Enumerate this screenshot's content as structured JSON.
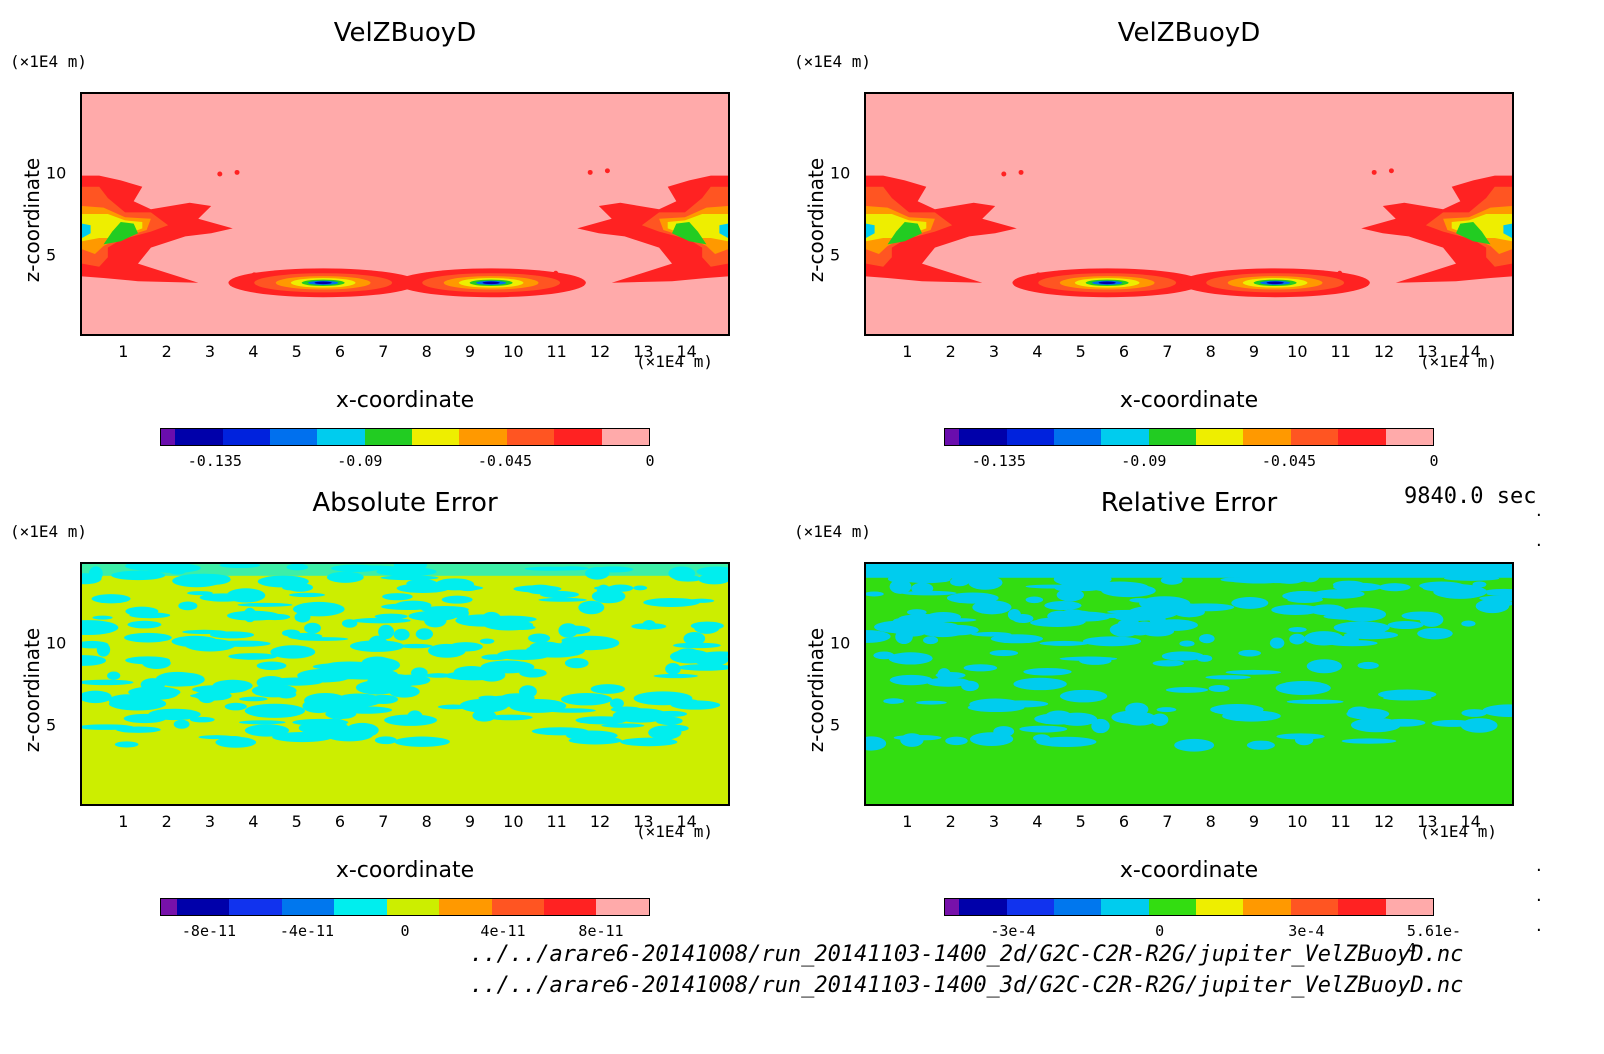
{
  "timestamp": "9840.0 sec",
  "files": [
    "../../arare6-20141008/run_20141103-1400_2d/G2C-C2R-R2G/jupiter_VelZBuoyD.nc",
    "../../arare6-20141008/run_20141103-1400_3d/G2C-C2R-R2G/jupiter_VelZBuoyD.nc"
  ],
  "chart_data": [
    {
      "type": "heatmap",
      "title": "VelZBuoyD",
      "xlabel": "x-coordinate",
      "ylabel": "z-coordinate",
      "x_unit": "(×1E4 m)",
      "y_unit": "(×1E4 m)",
      "x_ticks": [
        1,
        2,
        3,
        4,
        5,
        6,
        7,
        8,
        9,
        10,
        11,
        12,
        13,
        14
      ],
      "y_ticks": [
        5,
        10
      ],
      "xlim": [
        0,
        15
      ],
      "ylim": [
        0,
        15
      ],
      "colorbar": {
        "colors": [
          "#6a0dad",
          "#0000aa",
          "#0022dd",
          "#0070ee",
          "#00ccee",
          "#22cc22",
          "#eeee00",
          "#ff9900",
          "#ff5522",
          "#ff2222",
          "#ffaaaa"
        ],
        "tick_labels": [
          "-0.135",
          "-0.09",
          "-0.045",
          "0"
        ],
        "tick_values": [
          -0.135,
          -0.09,
          -0.045,
          0
        ],
        "range": [
          -0.152,
          0
        ]
      },
      "field": "buoy"
    },
    {
      "type": "heatmap",
      "title": "VelZBuoyD",
      "xlabel": "x-coordinate",
      "ylabel": "z-coordinate",
      "x_unit": "(×1E4 m)",
      "y_unit": "(×1E4 m)",
      "x_ticks": [
        1,
        2,
        3,
        4,
        5,
        6,
        7,
        8,
        9,
        10,
        11,
        12,
        13,
        14
      ],
      "y_ticks": [
        5,
        10
      ],
      "xlim": [
        0,
        15
      ],
      "ylim": [
        0,
        15
      ],
      "colorbar": {
        "colors": [
          "#6a0dad",
          "#0000aa",
          "#0022dd",
          "#0070ee",
          "#00ccee",
          "#22cc22",
          "#eeee00",
          "#ff9900",
          "#ff5522",
          "#ff2222",
          "#ffaaaa"
        ],
        "tick_labels": [
          "-0.135",
          "-0.09",
          "-0.045",
          "0"
        ],
        "tick_values": [
          -0.135,
          -0.09,
          -0.045,
          0
        ],
        "range": [
          -0.152,
          0
        ]
      },
      "field": "buoy"
    },
    {
      "type": "heatmap",
      "title": "Absolute Error",
      "xlabel": "x-coordinate",
      "ylabel": "z-coordinate",
      "x_unit": "(×1E4 m)",
      "y_unit": "(×1E4 m)",
      "x_ticks": [
        1,
        2,
        3,
        4,
        5,
        6,
        7,
        8,
        9,
        10,
        11,
        12,
        13,
        14
      ],
      "y_ticks": [
        5,
        10
      ],
      "xlim": [
        0,
        15
      ],
      "ylim": [
        0,
        15
      ],
      "colorbar": {
        "colors": [
          "#7711aa",
          "#0000aa",
          "#1133ee",
          "#0077ee",
          "#00eeee",
          "#ccee00",
          "#ff9900",
          "#ff5522",
          "#ff2222",
          "#ffaaaa"
        ],
        "tick_labels": [
          "-8e-11",
          "-4e-11",
          "0",
          "4e-11",
          "8e-11"
        ],
        "tick_values": [
          -8e-11,
          -4e-11,
          0,
          4e-11,
          8e-11
        ],
        "range": [
          -1e-10,
          1e-10
        ]
      },
      "field": "abs",
      "fill_colors": [
        "#ccee00",
        "#00eeee"
      ]
    },
    {
      "type": "heatmap",
      "title": "Relative Error",
      "xlabel": "x-coordinate",
      "ylabel": "z-coordinate",
      "x_unit": "(×1E4 m)",
      "y_unit": "(×1E4 m)",
      "x_ticks": [
        1,
        2,
        3,
        4,
        5,
        6,
        7,
        8,
        9,
        10,
        11,
        12,
        13,
        14
      ],
      "y_ticks": [
        5,
        10
      ],
      "xlim": [
        0,
        15
      ],
      "ylim": [
        0,
        15
      ],
      "colorbar": {
        "colors": [
          "#7711aa",
          "#0000aa",
          "#1133ee",
          "#0077ee",
          "#00ccee",
          "#33dd11",
          "#eeee00",
          "#ff9900",
          "#ff5522",
          "#ff2222",
          "#ffaaaa"
        ],
        "tick_labels": [
          "-3e-4",
          "0",
          "3e-4",
          "5.61e-4"
        ],
        "tick_values": [
          -0.0003,
          0,
          0.0003,
          0.000561
        ],
        "range": [
          -0.000441,
          0.000561
        ]
      },
      "field": "rel",
      "fill_colors": [
        "#33dd11",
        "#00ccee"
      ]
    }
  ]
}
